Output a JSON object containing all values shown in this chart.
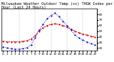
{
  "title": "Milwaukee Weather Outdoor Temp (vs) THSW Index per Hour (Last 24 Hours)",
  "hours": [
    0,
    1,
    2,
    3,
    4,
    5,
    6,
    7,
    8,
    9,
    10,
    11,
    12,
    13,
    14,
    15,
    16,
    17,
    18,
    19,
    20,
    21,
    22,
    23
  ],
  "temp_outdoor": [
    32,
    31,
    31,
    31,
    31,
    32,
    33,
    36,
    42,
    50,
    56,
    60,
    62,
    63,
    62,
    60,
    57,
    54,
    50,
    47,
    45,
    43,
    41,
    40
  ],
  "thsw_index": [
    22,
    20,
    19,
    18,
    18,
    19,
    21,
    26,
    38,
    52,
    62,
    72,
    78,
    82,
    76,
    68,
    60,
    52,
    43,
    38,
    34,
    31,
    28,
    26
  ],
  "temp_color": "#cc0000",
  "thsw_color": "#0000cc",
  "bg_color": "#ffffff",
  "ylim": [
    15,
    90
  ],
  "yticks": [
    20,
    30,
    40,
    50,
    60,
    70,
    80
  ],
  "grid_color": "#999999",
  "title_fontsize": 3.8,
  "tick_fontsize": 3.0,
  "line_width": 0.7
}
